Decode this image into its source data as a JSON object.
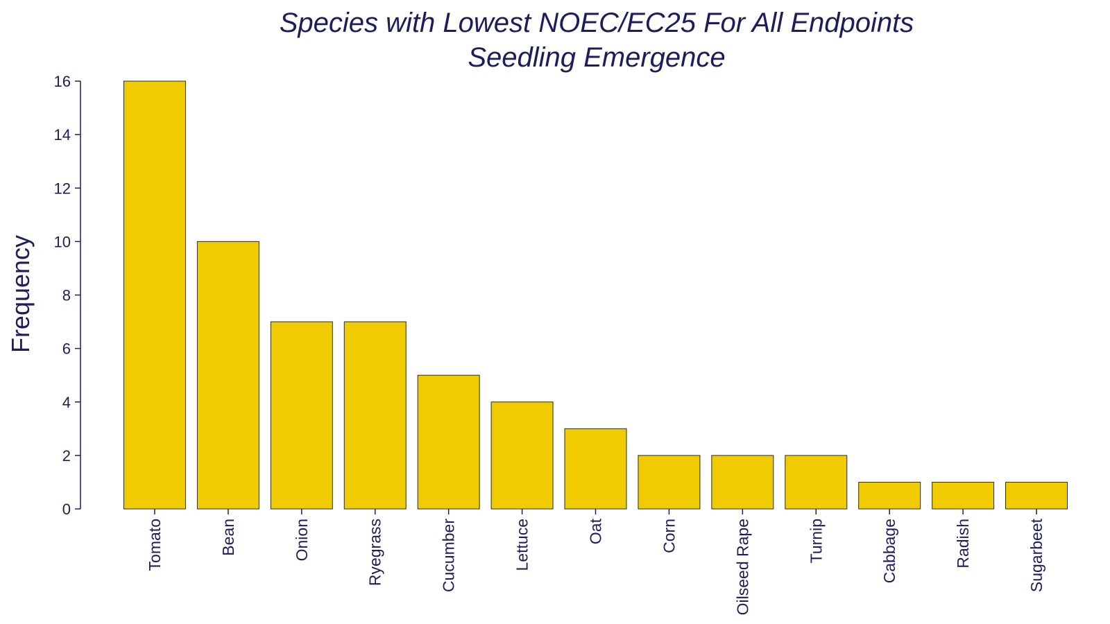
{
  "chart_data": {
    "type": "bar",
    "title": "Species with Lowest NOEC/EC25 For All Endpoints",
    "subtitle": "Seedling Emergence",
    "xlabel": "",
    "ylabel": "Frequency",
    "categories": [
      "Tomato",
      "Bean",
      "Onion",
      "Ryegrass",
      "Cucumber",
      "Lettuce",
      "Oat",
      "Corn",
      "Oilseed Rape",
      "Turnip",
      "Cabbage",
      "Radish",
      "Sugarbeet"
    ],
    "values": [
      16,
      10,
      7,
      7,
      5,
      4,
      3,
      2,
      2,
      2,
      1,
      1,
      1
    ],
    "ylim": [
      0,
      16
    ],
    "yticks": [
      0,
      2,
      4,
      6,
      8,
      10,
      12,
      14,
      16
    ],
    "grid": false,
    "legend": "none",
    "colors": {
      "bar_fill": "#efcb00",
      "bar_stroke": "#2a2a2a",
      "text": "#1b1d5c",
      "axis": "#1b1d5c"
    }
  }
}
